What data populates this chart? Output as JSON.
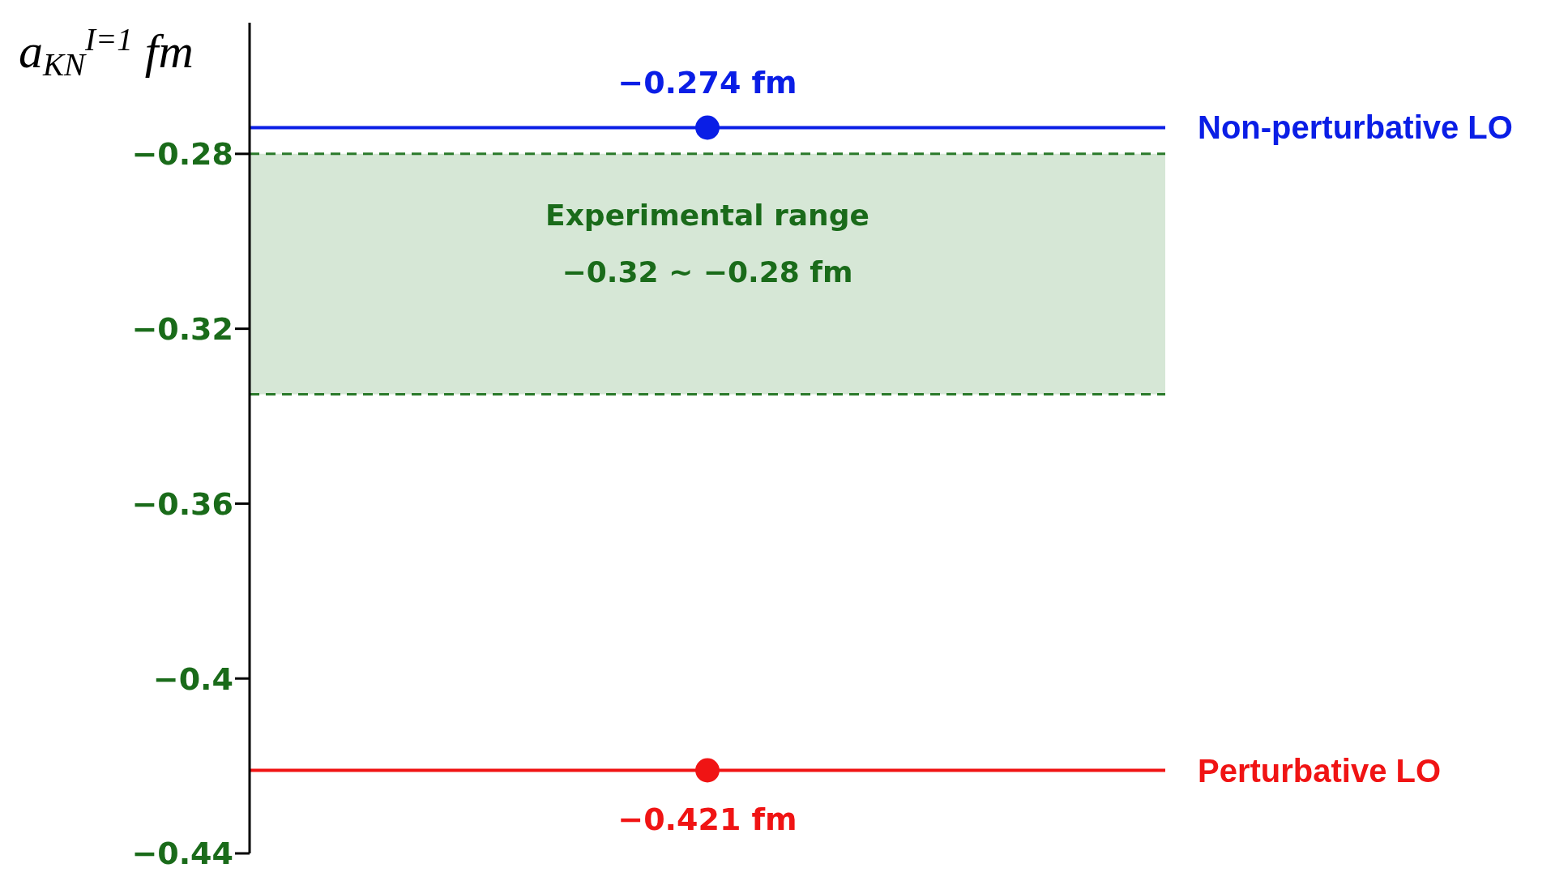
{
  "chart_data": {
    "type": "scatter",
    "ylabel": "a$_{KN}$$^{I=1}$ fm",
    "categories": [
      null
    ],
    "series": [
      {
        "color": "#0a1ee6",
        "values": [
          -0.274
        ],
        "value_labels": [
          "−0.274 fm"
        ]
      },
      {
        "color": "#f01414",
        "values": [
          -0.421
        ],
        "value_labels": [
          "−0.421 fm"
        ]
      }
    ],
    "marker": "circle",
    "ref_lines": [
      {
        "axis": "y",
        "value": -0.274,
        "label": "Non-perturbative LO",
        "color": "#0a1ee6",
        "line_style": "solid"
      },
      {
        "axis": "y",
        "value": -0.421,
        "label": "Perturbative LO",
        "color": "#f01414",
        "line_style": "solid"
      },
      {
        "axis": "y",
        "value": -0.28,
        "color": "#2a7a2a",
        "line_style": "dashed"
      },
      {
        "axis": "y",
        "value": -0.335,
        "color": "#2a7a2a",
        "line_style": "dashed"
      }
    ],
    "bands": [
      {
        "axis": "y",
        "from": -0.335,
        "to": -0.28,
        "label": "Experimental range",
        "color": "#d6e7d6"
      }
    ],
    "annotations": [
      "−0.32 ∼ −0.28 fm"
    ],
    "ylim": [
      -0.44,
      -0.25
    ],
    "yticks": [
      -0.44,
      -0.4,
      -0.36,
      -0.32,
      -0.28
    ],
    "tick_labels": "y",
    "grid": false,
    "legend": false
  }
}
